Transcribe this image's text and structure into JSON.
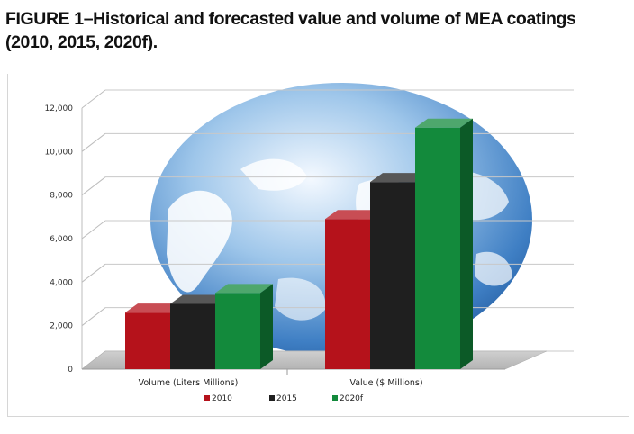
{
  "figure": {
    "title": "FIGURE 1–Historical and forecasted value and volume of MEA coatings (2010, 2015, 2020f)."
  },
  "chart_data": {
    "type": "bar",
    "categories": [
      "Volume (Liters Millions)",
      "Value ($ Millions)"
    ],
    "series": [
      {
        "name": "2010",
        "values": [
          2600,
          6900
        ],
        "color": "#b5121b"
      },
      {
        "name": "2015",
        "values": [
          3000,
          8600
        ],
        "color": "#1f1f1f"
      },
      {
        "name": "2020f",
        "values": [
          3500,
          11100
        ],
        "color": "#138a3c"
      }
    ],
    "y_ticks": [
      "12,000",
      "10,000",
      "8,000",
      "6,000",
      "4,000",
      "2,000",
      "0"
    ],
    "ylim": [
      0,
      12000
    ],
    "grid": true,
    "legend_position": "bottom-center",
    "background_icon": "globe-icon"
  }
}
